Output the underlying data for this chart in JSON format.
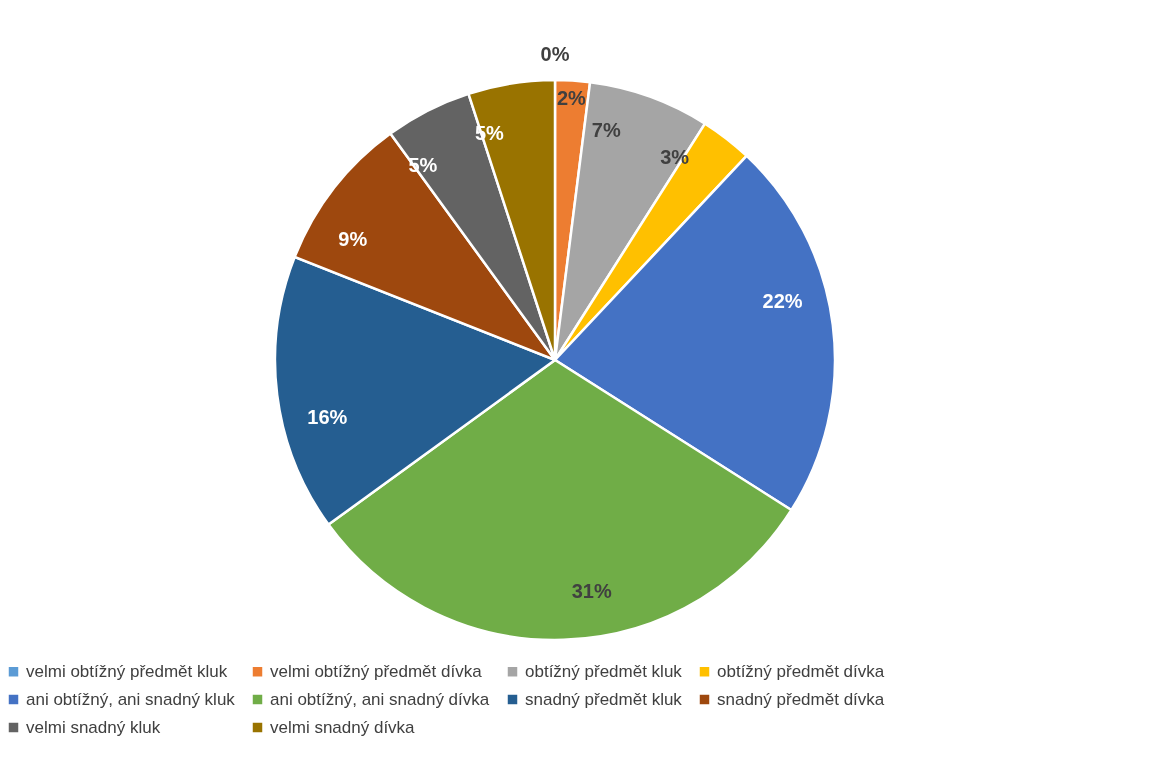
{
  "chart_data": {
    "type": "pie",
    "categories": [
      "velmi obtížný předmět kluk",
      "velmi obtížný předmět dívka",
      "obtížný předmět kluk",
      "obtížný předmět dívka",
      "ani obtížný, ani snadný kluk",
      "ani obtížný, ani snadný dívka",
      "snadný předmět kluk",
      "snadný předmět dívka",
      "velmi snadný kluk",
      "velmi snadný dívka"
    ],
    "values": [
      0,
      2,
      7,
      3,
      22,
      31,
      16,
      9,
      5,
      5
    ],
    "value_labels": [
      "0%",
      "2%",
      "7%",
      "3%",
      "22%",
      "31%",
      "16%",
      "9%",
      "5%",
      "5%"
    ],
    "colors": [
      "#5b9bd5",
      "#ed7d31",
      "#a5a5a5",
      "#ffc000",
      "#4472c4",
      "#70ad47",
      "#255e91",
      "#9e480e",
      "#636363",
      "#997300"
    ],
    "legend": "bottom"
  }
}
